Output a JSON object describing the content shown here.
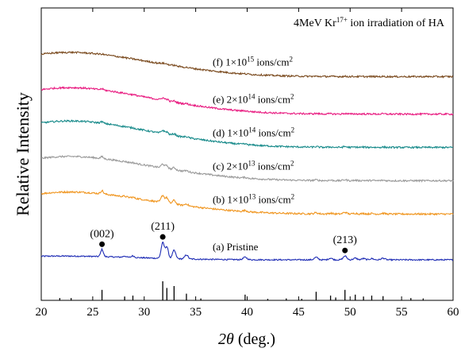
{
  "chart_data": {
    "type": "line",
    "title_main": "4MeV Kr",
    "title_sup": "17+",
    "title_rest": " ion irradiation of HA",
    "xlabel_symbol": "2θ",
    "xlabel_unit": " (deg.)",
    "ylabel": "Relative Intensity",
    "xlim": [
      20,
      60
    ],
    "xticks": [
      20,
      25,
      30,
      35,
      40,
      45,
      50,
      55,
      60
    ],
    "grid": false,
    "y_ticks_shown": false,
    "series": [
      {
        "label": "(a) Pristine",
        "color": "#1f2db5",
        "baseline": 0.0,
        "hump": 0.03,
        "peak_scale": 1.0,
        "noise": 0.006
      },
      {
        "label": "(b) 1×10",
        "sup": "13",
        "unit": " ions/cm",
        "unit_sup": "2",
        "color": "#f0951e",
        "baseline": 0.22,
        "hump": 0.1,
        "peak_scale": 0.45,
        "noise": 0.008
      },
      {
        "label": "(c) 2×10",
        "sup": "13",
        "unit": " ions/cm",
        "unit_sup": "2",
        "color": "#9a9a9a",
        "baseline": 0.38,
        "hump": 0.11,
        "peak_scale": 0.25,
        "noise": 0.008
      },
      {
        "label": "(d) 1×10",
        "sup": "14",
        "unit": " ions/cm",
        "unit_sup": "2",
        "color": "#178a8a",
        "baseline": 0.54,
        "hump": 0.12,
        "peak_scale": 0.2,
        "noise": 0.008
      },
      {
        "label": "(e) 2×10",
        "sup": "14",
        "unit": " ions/cm",
        "unit_sup": "2",
        "color": "#e8197f",
        "baseline": 0.7,
        "hump": 0.12,
        "peak_scale": 0.15,
        "noise": 0.008
      },
      {
        "label": "(f) 1×10",
        "sup": "15",
        "unit": " ions/cm",
        "unit_sup": "2",
        "color": "#7a4a1e",
        "baseline": 0.88,
        "hump": 0.11,
        "peak_scale": 0.05,
        "noise": 0.008
      }
    ],
    "peaks": [
      {
        "x": 25.9,
        "h": 0.035,
        "w": 0.18
      },
      {
        "x": 28.1,
        "h": 0.006,
        "w": 0.2
      },
      {
        "x": 28.9,
        "h": 0.008,
        "w": 0.2
      },
      {
        "x": 31.8,
        "h": 0.075,
        "w": 0.22
      },
      {
        "x": 32.2,
        "h": 0.055,
        "w": 0.2
      },
      {
        "x": 32.9,
        "h": 0.04,
        "w": 0.22
      },
      {
        "x": 34.1,
        "h": 0.02,
        "w": 0.22
      },
      {
        "x": 39.8,
        "h": 0.012,
        "w": 0.25
      },
      {
        "x": 46.7,
        "h": 0.012,
        "w": 0.25
      },
      {
        "x": 48.1,
        "h": 0.008,
        "w": 0.25
      },
      {
        "x": 49.5,
        "h": 0.018,
        "w": 0.25
      },
      {
        "x": 50.5,
        "h": 0.008,
        "w": 0.25
      },
      {
        "x": 51.3,
        "h": 0.006,
        "w": 0.25
      },
      {
        "x": 52.1,
        "h": 0.006,
        "w": 0.25
      },
      {
        "x": 53.2,
        "h": 0.008,
        "w": 0.25
      }
    ],
    "peak_labels": [
      {
        "text": "(002)",
        "x": 25.9,
        "y": 0.075
      },
      {
        "text": "(211)",
        "x": 31.8,
        "y": 0.11
      },
      {
        "text": "(213)",
        "x": 49.5,
        "y": 0.045
      }
    ],
    "reference_lines": [
      {
        "x": 21.8,
        "h": 0.12
      },
      {
        "x": 22.9,
        "h": 0.12
      },
      {
        "x": 25.9,
        "h": 0.55
      },
      {
        "x": 28.1,
        "h": 0.2
      },
      {
        "x": 28.9,
        "h": 0.25
      },
      {
        "x": 31.8,
        "h": 1.0
      },
      {
        "x": 32.2,
        "h": 0.65
      },
      {
        "x": 32.9,
        "h": 0.75
      },
      {
        "x": 34.1,
        "h": 0.35
      },
      {
        "x": 35.5,
        "h": 0.1
      },
      {
        "x": 39.8,
        "h": 0.3
      },
      {
        "x": 42.0,
        "h": 0.08
      },
      {
        "x": 43.8,
        "h": 0.1
      },
      {
        "x": 45.3,
        "h": 0.08
      },
      {
        "x": 46.7,
        "h": 0.45
      },
      {
        "x": 48.1,
        "h": 0.25
      },
      {
        "x": 48.6,
        "h": 0.15
      },
      {
        "x": 49.5,
        "h": 0.55
      },
      {
        "x": 50.5,
        "h": 0.3
      },
      {
        "x": 51.3,
        "h": 0.2
      },
      {
        "x": 52.1,
        "h": 0.25
      },
      {
        "x": 53.2,
        "h": 0.22
      },
      {
        "x": 55.9,
        "h": 0.12
      },
      {
        "x": 57.1,
        "h": 0.1
      }
    ]
  }
}
